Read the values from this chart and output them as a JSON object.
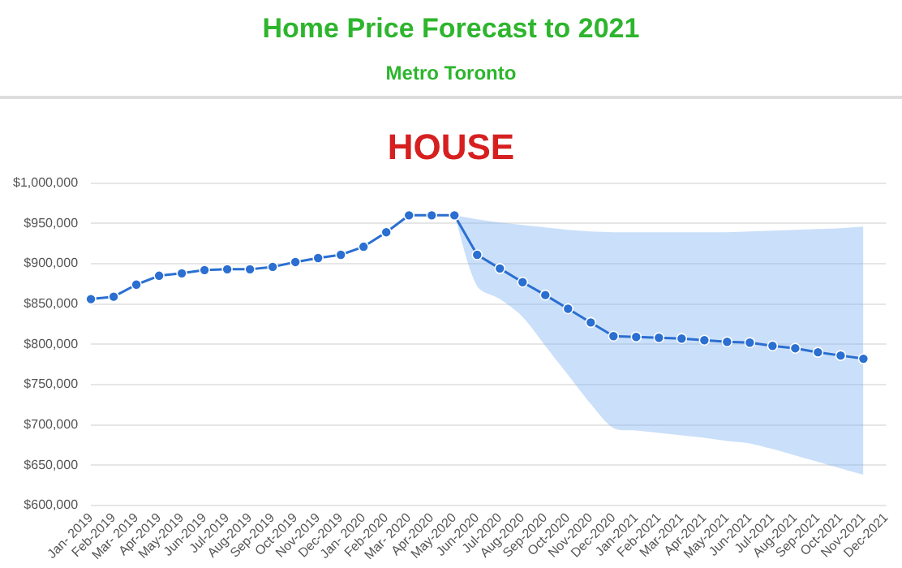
{
  "chart_data": {
    "type": "line",
    "title": "Home Price Forecast to 2021",
    "subtitle": "Metro Toronto",
    "annotations": [
      "HOUSE"
    ],
    "categories": [
      "Jan- 2019",
      "Feb-2019",
      "Mar- 2019",
      "Apr-2019",
      "May-2019",
      "Jun-2019",
      "Jul-2019",
      "Aug-2019",
      "Sep-2019",
      "Oct-2019",
      "Nov-2019",
      "Dec-2019",
      "Jan- 2020",
      "Feb-2020",
      "Mar- 2020",
      "Apr-2020",
      "May-2020",
      "Jun-2020",
      "Jul-2020",
      "Aug-2020",
      "Sep-2020",
      "Oct-2020",
      "Nov-2020",
      "Dec-2020",
      "Jan-2021",
      "Feb-2021",
      "Mar-2021",
      "Apr-2021",
      "May-2021",
      "Jun-2021",
      "Jul-2021",
      "Aug-2021",
      "Sep-2021",
      "Oct-2021",
      "Nov-2021",
      "Dec-2021"
    ],
    "series": [
      {
        "color": "#2a6fd1",
        "values": [
          856000,
          859000,
          874000,
          885000,
          888000,
          892000,
          893000,
          893000,
          896000,
          902000,
          907000,
          911000,
          921000,
          939000,
          960000,
          960000,
          960000,
          911000,
          894000,
          877000,
          861000,
          844000,
          827000,
          810000,
          809000,
          808000,
          807000,
          805000,
          803000,
          802000,
          798000,
          795000,
          790000,
          786000,
          782000,
          null
        ],
        "lower": [
          null,
          null,
          null,
          null,
          null,
          null,
          null,
          null,
          null,
          null,
          null,
          null,
          null,
          null,
          null,
          null,
          960000,
          872000,
          856000,
          834000,
          798000,
          762000,
          726000,
          696000,
          693000,
          690000,
          687000,
          684000,
          680000,
          677000,
          670000,
          662000,
          654000,
          646000,
          638000,
          null
        ],
        "upper": [
          null,
          null,
          null,
          null,
          null,
          null,
          null,
          null,
          null,
          null,
          null,
          null,
          null,
          null,
          null,
          null,
          960000,
          955000,
          951000,
          948000,
          945000,
          942000,
          940000,
          939000,
          939000,
          939000,
          939000,
          939000,
          939000,
          940000,
          941000,
          942000,
          943000,
          944000,
          946000,
          null
        ]
      }
    ],
    "ylim": [
      600000,
      1000000
    ],
    "yticks": [
      {
        "value": 600000,
        "label": "$600,000"
      },
      {
        "value": 650000,
        "label": "$650,000"
      },
      {
        "value": 700000,
        "label": "$700,000"
      },
      {
        "value": 750000,
        "label": "$750,000"
      },
      {
        "value": 800000,
        "label": "$800,000"
      },
      {
        "value": 850000,
        "label": "$850,000"
      },
      {
        "value": 900000,
        "label": "$900,000"
      },
      {
        "value": 950000,
        "label": "$950,000"
      },
      {
        "value": 1000000,
        "label": "$1,000,000"
      }
    ],
    "grid": "y",
    "legend": false,
    "marker": "circle",
    "line_style": "solid"
  }
}
